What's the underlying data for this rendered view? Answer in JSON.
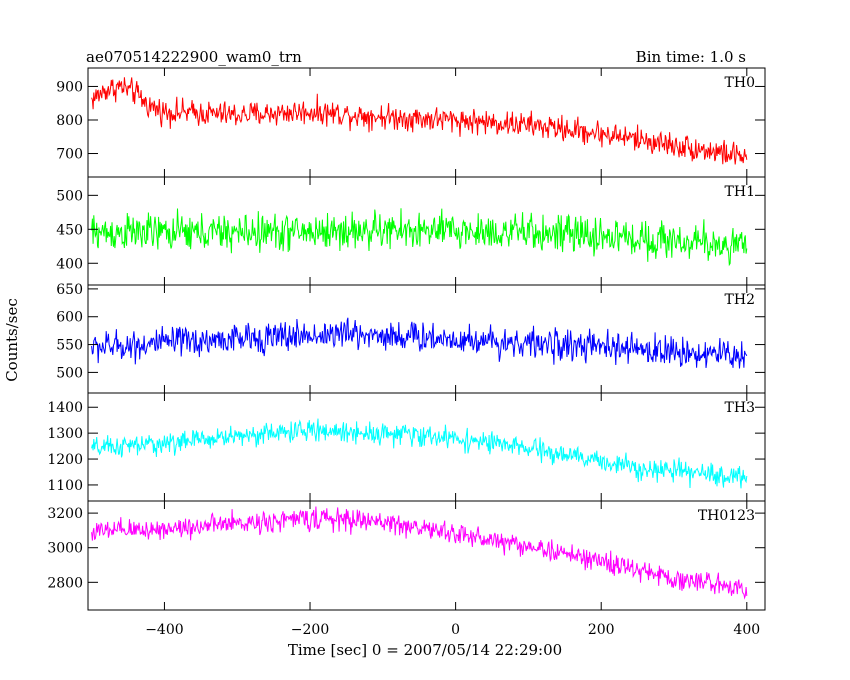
{
  "header": {
    "title": "ae070514222900_wam0_trn",
    "bin_time": "Bin time: 1.0 s"
  },
  "chart_data": {
    "type": "line",
    "title": "ae070514222900_wam0_trn",
    "bin_time": "Bin time: 1.0 s",
    "xlabel": "Time [sec] 0 = 2007/05/14 22:29:00",
    "ylabel": "Counts/sec",
    "xlim": [
      -505,
      425
    ],
    "x_ticks": [
      -400,
      -200,
      0,
      200,
      400
    ],
    "x_tick_labels": [
      "−400",
      "−200",
      "0",
      "200",
      "400"
    ],
    "x_range": [
      -500,
      400
    ],
    "x_step": 1,
    "grid": false,
    "panels": [
      {
        "name": "TH0",
        "color": "#ff0000",
        "ylim": [
          630,
          955
        ],
        "y_ticks": [
          700,
          800,
          900
        ],
        "trend_x": [
          -500,
          -480,
          -460,
          -440,
          -420,
          -400,
          -300,
          -200,
          -100,
          0,
          100,
          200,
          300,
          400
        ],
        "trend_y": [
          860,
          890,
          900,
          880,
          840,
          825,
          815,
          825,
          810,
          800,
          785,
          760,
          725,
          690
        ],
        "noise": 33
      },
      {
        "name": "TH1",
        "color": "#00ff00",
        "ylim": [
          368,
          527
        ],
        "y_ticks": [
          400,
          450,
          500
        ],
        "trend_x": [
          -500,
          -300,
          -100,
          0,
          100,
          200,
          300,
          400
        ],
        "trend_y": [
          445,
          445,
          448,
          447,
          445,
          440,
          433,
          425
        ],
        "noise": 24
      },
      {
        "name": "TH2",
        "color": "#0000ff",
        "ylim": [
          463,
          657
        ],
        "y_ticks": [
          500,
          550,
          600,
          650
        ],
        "trend_x": [
          -500,
          -300,
          -150,
          0,
          200,
          400
        ],
        "trend_y": [
          545,
          560,
          570,
          560,
          545,
          530
        ],
        "noise": 24
      },
      {
        "name": "TH3",
        "color": "#00ffff",
        "ylim": [
          1038,
          1455
        ],
        "y_ticks": [
          1100,
          1200,
          1300,
          1400
        ],
        "trend_x": [
          -500,
          -400,
          -300,
          -200,
          -100,
          0,
          100,
          200,
          300,
          400
        ],
        "trend_y": [
          1240,
          1260,
          1290,
          1310,
          1300,
          1280,
          1240,
          1190,
          1150,
          1130
        ],
        "noise": 36
      },
      {
        "name": "TH0123",
        "color": "#ff00ff",
        "ylim": [
          2640,
          3270
        ],
        "y_ticks": [
          2800,
          3000,
          3200
        ],
        "trend_x": [
          -500,
          -400,
          -300,
          -200,
          -100,
          0,
          100,
          200,
          300,
          400
        ],
        "trend_y": [
          3090,
          3110,
          3140,
          3170,
          3150,
          3080,
          3010,
          2920,
          2820,
          2770
        ],
        "noise": 55
      }
    ]
  }
}
